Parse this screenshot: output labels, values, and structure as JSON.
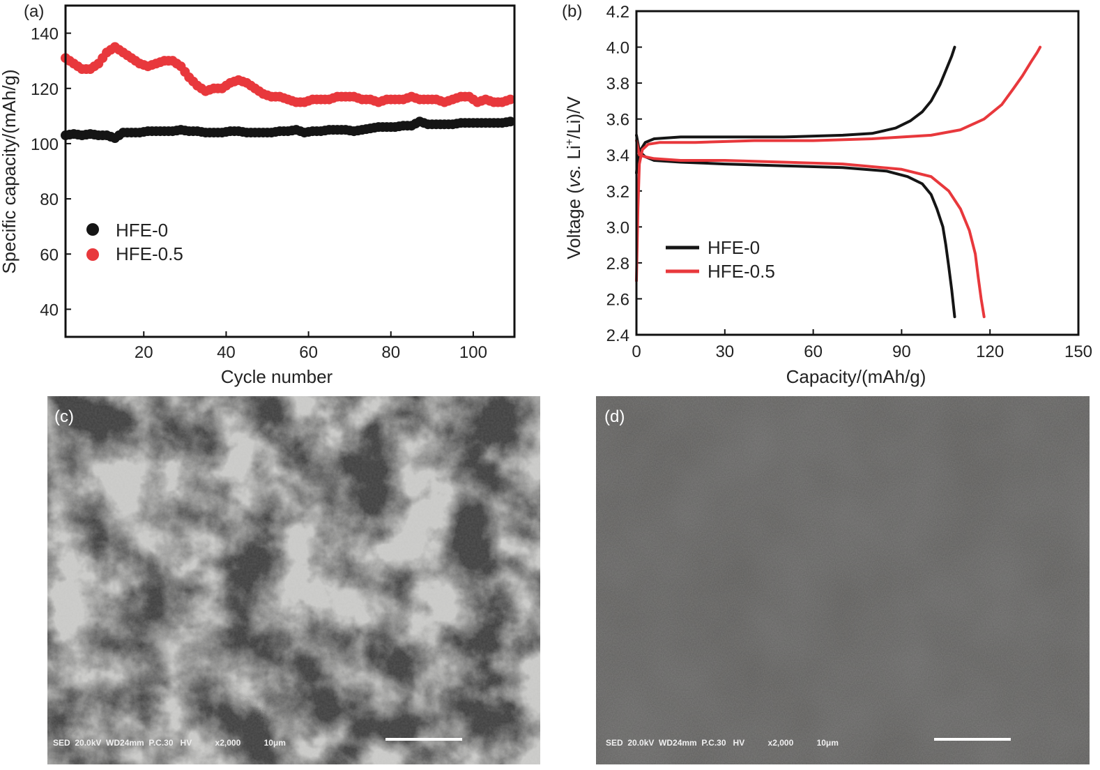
{
  "panels": {
    "a": {
      "tag": "(a)"
    },
    "b": {
      "tag": "(b)"
    },
    "c": {
      "tag": "(c)",
      "sem_info": "SED  20.0kV  WD24mm  P.C.30   HV          x2,000          10μm"
    },
    "d": {
      "tag": "(d)",
      "sem_info": "SED  20.0kV  WD24mm  P.C.30   HV          x2,000          10μm"
    }
  },
  "chart_data": [
    {
      "type": "scatter",
      "xlabel": "Cycle number",
      "ylabel": "Specific capacity/(mAh/g)",
      "xlim": [
        1,
        110
      ],
      "ylim": [
        30,
        150
      ],
      "xticks": [
        20,
        40,
        60,
        80,
        100
      ],
      "yticks": [
        40,
        60,
        80,
        100,
        120,
        140
      ],
      "legend": "middle-left",
      "series": [
        {
          "name": "HFE-0",
          "color": "#151515",
          "marker": "circle",
          "x": [
            1,
            3,
            5,
            7,
            9,
            11,
            13,
            15,
            17,
            19,
            21,
            23,
            25,
            27,
            29,
            31,
            33,
            35,
            37,
            39,
            41,
            43,
            45,
            47,
            49,
            51,
            53,
            55,
            57,
            59,
            61,
            63,
            65,
            67,
            69,
            71,
            73,
            75,
            77,
            79,
            81,
            83,
            85,
            87,
            89,
            91,
            93,
            95,
            97,
            99,
            101,
            103,
            105,
            107,
            109
          ],
          "y": [
            103,
            103.5,
            103,
            103.5,
            103,
            103,
            102,
            104,
            104,
            104,
            104.5,
            104.5,
            104.5,
            104.5,
            105,
            104.5,
            104.5,
            104,
            104,
            104,
            104.5,
            104.5,
            104,
            104,
            104,
            104,
            104.5,
            104.5,
            105,
            104,
            104.5,
            104.5,
            105,
            105,
            105,
            104.5,
            105,
            105.5,
            106,
            106,
            106,
            106.5,
            106.5,
            108,
            107,
            107,
            107,
            107,
            107.5,
            107.5,
            107.5,
            107.5,
            107.5,
            107.5,
            108
          ]
        },
        {
          "name": "HFE-0.5",
          "color": "#e8383c",
          "marker": "circle",
          "x": [
            1,
            3,
            5,
            7,
            9,
            11,
            13,
            15,
            17,
            19,
            21,
            23,
            25,
            27,
            29,
            31,
            33,
            35,
            37,
            39,
            41,
            43,
            45,
            47,
            49,
            51,
            53,
            55,
            57,
            59,
            61,
            63,
            65,
            67,
            69,
            71,
            73,
            75,
            77,
            79,
            81,
            83,
            85,
            87,
            89,
            91,
            93,
            95,
            97,
            99,
            101,
            103,
            105,
            107,
            109
          ],
          "y": [
            131,
            129,
            127,
            127,
            129,
            133,
            135,
            133,
            131,
            129,
            128,
            129,
            130,
            130,
            128,
            124,
            121,
            119,
            120,
            120,
            122,
            123,
            122,
            120,
            118,
            117,
            117,
            116,
            115,
            115,
            116,
            116,
            116,
            117,
            117,
            117,
            116,
            116,
            115,
            116,
            116,
            116,
            117,
            116,
            116,
            116,
            115,
            116,
            117,
            117,
            115,
            116,
            115,
            115,
            116
          ]
        }
      ]
    },
    {
      "type": "line",
      "xlabel": "Capacity/(mAh/g)",
      "ylabel": "Voltage (vs. Li+/Li)/V",
      "xlim": [
        0,
        150
      ],
      "ylim": [
        2.4,
        4.2
      ],
      "xticks": [
        0,
        30,
        60,
        90,
        120,
        150
      ],
      "yticks": [
        2.4,
        2.6,
        2.8,
        3.0,
        3.2,
        3.4,
        3.6,
        3.8,
        4.0,
        4.2
      ],
      "legend": "middle-left",
      "series": [
        {
          "name": "HFE-0",
          "color": "#151515",
          "charge": {
            "x": [
              0,
              0.5,
              1.5,
              3,
              6,
              15,
              30,
              50,
              70,
              80,
              88,
              93,
              97,
              100,
              103,
              105,
              107,
              108
            ],
            "y": [
              3.3,
              3.38,
              3.43,
              3.47,
              3.49,
              3.5,
              3.5,
              3.5,
              3.51,
              3.52,
              3.55,
              3.59,
              3.64,
              3.7,
              3.79,
              3.87,
              3.95,
              4.0
            ]
          },
          "discharge": {
            "x": [
              0,
              1,
              3,
              6,
              15,
              30,
              50,
              70,
              85,
              92,
              97,
              100,
              102,
              104,
              105,
              106,
              107,
              108
            ],
            "y": [
              3.51,
              3.42,
              3.39,
              3.37,
              3.36,
              3.35,
              3.34,
              3.33,
              3.31,
              3.28,
              3.24,
              3.18,
              3.1,
              3.0,
              2.9,
              2.78,
              2.65,
              2.5
            ]
          }
        },
        {
          "name": "HFE-0.5",
          "color": "#e8383c",
          "charge": {
            "x": [
              0,
              0.5,
              1,
              2,
              4,
              8,
              20,
              40,
              60,
              80,
              100,
              110,
              118,
              124,
              128,
              131,
              134,
              136,
              137
            ],
            "y": [
              2.7,
              3.1,
              3.35,
              3.43,
              3.46,
              3.47,
              3.47,
              3.48,
              3.48,
              3.49,
              3.51,
              3.54,
              3.6,
              3.68,
              3.77,
              3.84,
              3.92,
              3.97,
              4.0
            ]
          },
          "discharge": {
            "x": [
              0,
              1,
              3,
              6,
              15,
              30,
              50,
              70,
              90,
              100,
              106,
              110,
              113,
              115,
              116,
              117,
              118
            ],
            "y": [
              3.48,
              3.4,
              3.39,
              3.38,
              3.37,
              3.37,
              3.36,
              3.35,
              3.32,
              3.28,
              3.2,
              3.1,
              2.98,
              2.85,
              2.72,
              2.6,
              2.5
            ]
          }
        }
      ]
    }
  ]
}
